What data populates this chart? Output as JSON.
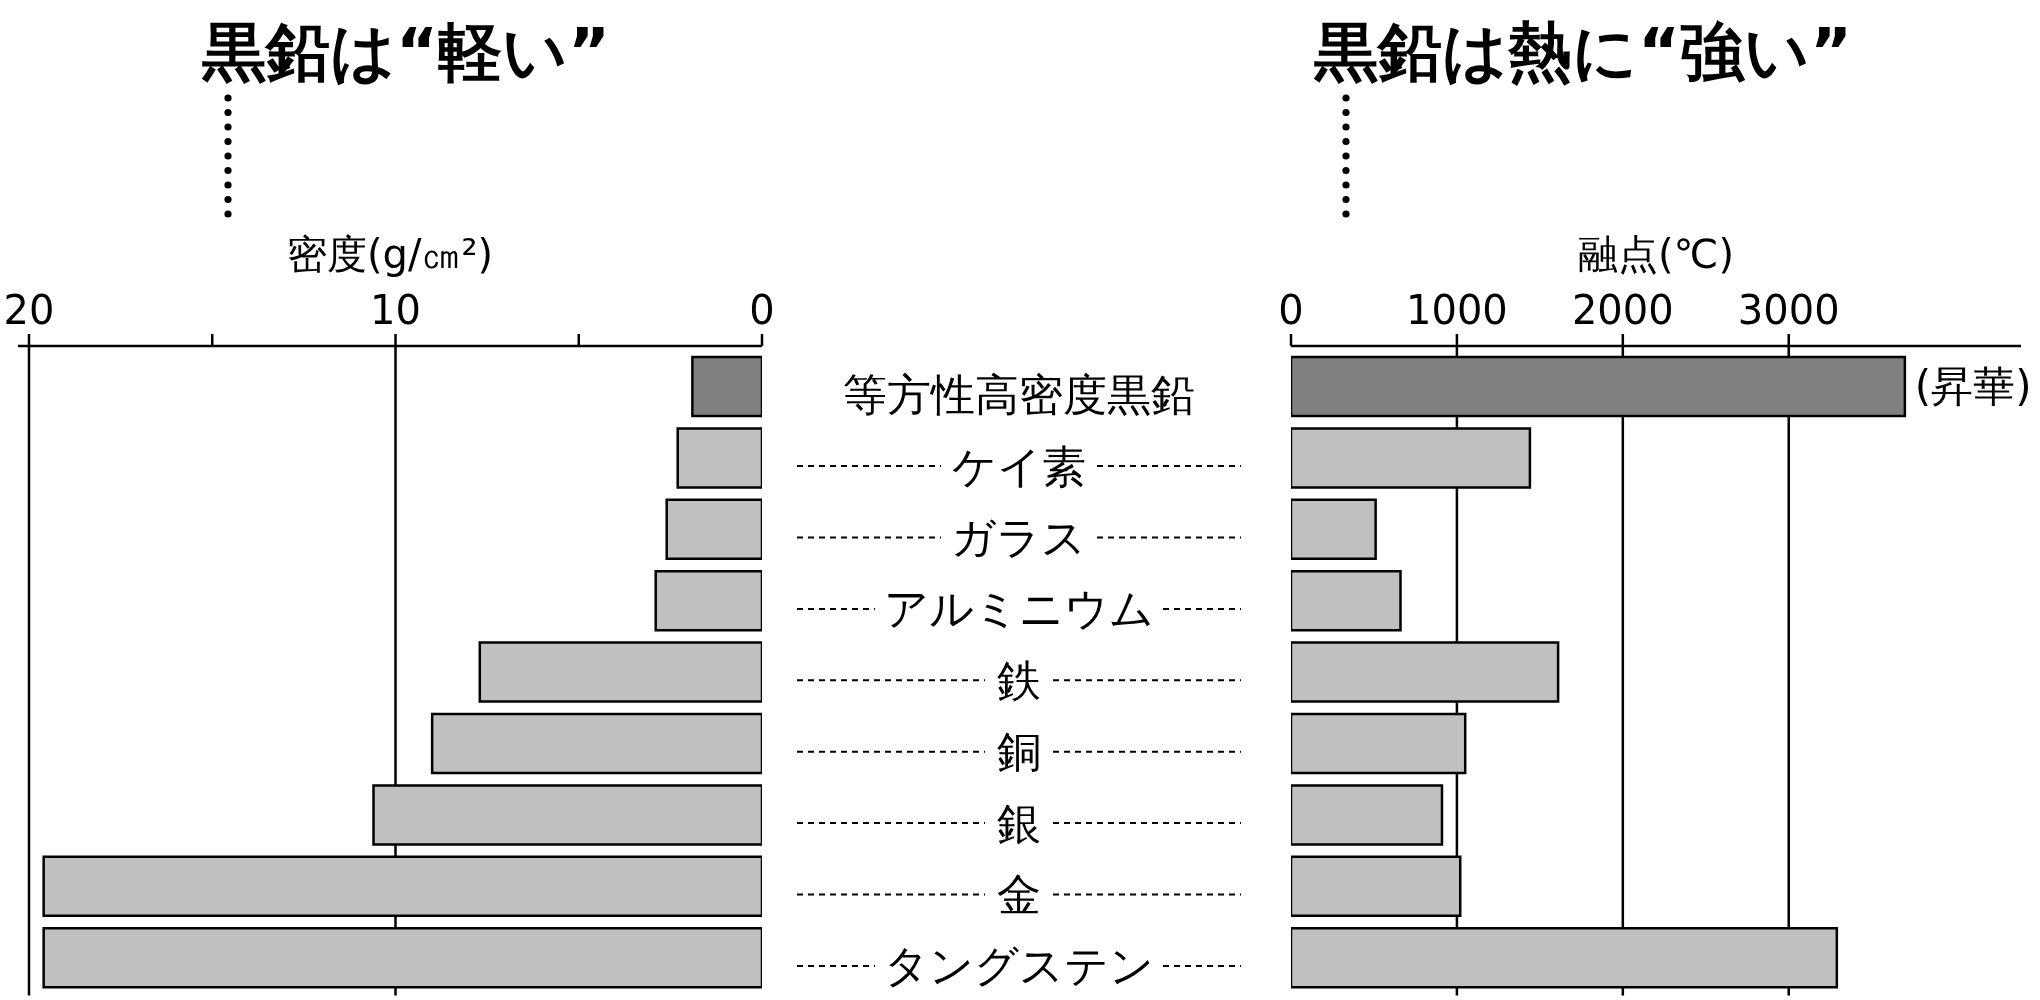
{
  "chart_data": [
    {
      "type": "bar",
      "orientation": "horizontal",
      "title": "黒鉛は“軽い”",
      "xlabel": "密度(g/㎝²)",
      "categories": [
        "等方性高密度黒鉛",
        "ケイ素",
        "ガラス",
        "アルミニウム",
        "鉄",
        "銅",
        "銀",
        "金",
        "タングステン"
      ],
      "values": [
        1.9,
        2.3,
        2.6,
        2.9,
        7.7,
        9.0,
        10.6,
        19.6,
        19.6
      ],
      "colors": [
        "#808080",
        "#c0c0c0",
        "#c0c0c0",
        "#c0c0c0",
        "#c0c0c0",
        "#c0c0c0",
        "#c0c0c0",
        "#c0c0c0",
        "#c0c0c0"
      ],
      "xlim": [
        20.3,
        0
      ],
      "xticks": [
        20,
        {
          "value": 15,
          "label": null
        },
        10,
        {
          "value": 5,
          "label": null
        },
        0
      ],
      "grid": "x"
    },
    {
      "type": "bar",
      "orientation": "horizontal",
      "title": "黒鉛は熱に“強い”",
      "xlabel": "融点(℃)",
      "categories": [
        "等方性高密度黒鉛",
        "ケイ素",
        "ガラス",
        "アルミニウム",
        "鉄",
        "銅",
        "銀",
        "金",
        "タングステン"
      ],
      "values": [
        3700,
        1440,
        510,
        660,
        1610,
        1050,
        910,
        1020,
        3290
      ],
      "colors": [
        "#808080",
        "#c0c0c0",
        "#c0c0c0",
        "#c0c0c0",
        "#c0c0c0",
        "#c0c0c0",
        "#c0c0c0",
        "#c0c0c0",
        "#c0c0c0"
      ],
      "xlim": [
        0,
        4400
      ],
      "xticks": [
        0,
        1000,
        2000,
        3000
      ],
      "grid": "x",
      "tick_labels": "x",
      "annotations": [
        {
          "text": "(昇華)",
          "x": 3700,
          "y": "等方性高密度黒鉛"
        }
      ]
    }
  ]
}
